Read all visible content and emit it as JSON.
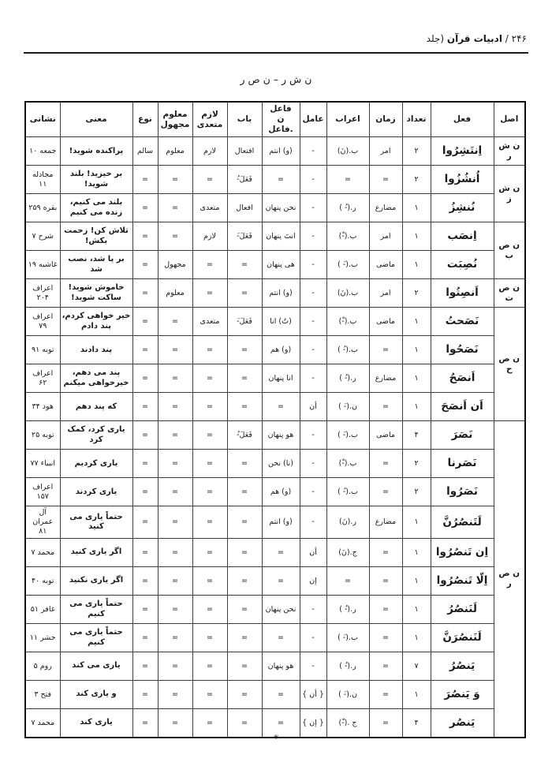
{
  "page": {
    "header_number": "۲۴۶ /",
    "header_title": "ادبیات قرآن",
    "header_suffix": "(جلد",
    "section_title": "ن ش ر – ن ص ر",
    "footer_mark": "*"
  },
  "table": {
    "headers": {
      "asl": "اصل",
      "fel": "فعل",
      "tedad": "تعداد",
      "zaman": "زمان",
      "erab": "اعراب",
      "amel": "عامل",
      "fael": "فاعل\nن .فاعل",
      "bab": "باب",
      "lazem": "لازم\nمتعدی",
      "maloom": "معلوم\nمجهول",
      "no": "نوع",
      "mani": "معنی",
      "neshani": "نشانی"
    },
    "rows": [
      {
        "asl": "ن ش ر",
        "asl_span": 1,
        "fel": "اِنتَشِرُوا",
        "tedad": "۲",
        "zaman": "امر",
        "erab": "ب.(نَ)",
        "amel": "-",
        "fael": "(و) انتم",
        "bab": "افتعال",
        "lazem": "لازم",
        "maloom": "معلوم",
        "no": "سالم",
        "mani": "پراکنده شوید!",
        "neshani": "جمعه ۱۰"
      },
      {
        "asl": "ن ش ز",
        "asl_span": 2,
        "fel": "اُنشُزُوا",
        "tedad": "۲",
        "zaman": "=",
        "erab": "=",
        "amel": "-",
        "fael": "=",
        "bab": "فَعَلَ-ُ",
        "lazem": "=",
        "maloom": "=",
        "no": "=",
        "mani": "بر خیزید! بلند شوید!",
        "neshani": "مجادله ۱۱"
      },
      {
        "fel": "نُنشِزُ",
        "tedad": "۱",
        "zaman": "مضارع",
        "erab": "ر.(-ُ )",
        "amel": "-",
        "fael": "نحن پنهان",
        "bab": "افعال",
        "lazem": "متعدی",
        "maloom": "=",
        "no": "=",
        "mani": "بلند می کنیم، زنده می کنیم",
        "neshani": "بقره ۲۵۹"
      },
      {
        "asl": "ن ص ب",
        "asl_span": 2,
        "fel": "اِنصَب",
        "tedad": "۱",
        "zaman": "امر",
        "erab": "ب.(-ْ)",
        "amel": "-",
        "fael": "انتَ پنهان",
        "bab": "فَعَلَ-َ",
        "lazem": "لازم",
        "maloom": "=",
        "no": "=",
        "mani": "تلاش کن! زحمت بکش!",
        "neshani": "شرح ۷"
      },
      {
        "fel": "نُصِبَت",
        "tedad": "۱",
        "zaman": "ماضی",
        "erab": "ب.(-َ )",
        "amel": "-",
        "fael": "هی پنهان",
        "bab": "=",
        "lazem": "=",
        "maloom": "مجهول",
        "no": "=",
        "mani": "بر پا شد، نصب شد",
        "neshani": "غاشیه ۱۹"
      },
      {
        "asl": "ن ص ت",
        "asl_span": 1,
        "fel": "اَنصِتُوا",
        "tedad": "۲",
        "zaman": "امر",
        "erab": "ب.(نَ)",
        "amel": "-",
        "fael": "(و) انتم",
        "bab": "=",
        "lazem": "=",
        "maloom": "معلوم",
        "no": "=",
        "mani": "خاموش شوید! ساکت شوید!",
        "neshani": "اعراف ۲۰۴"
      },
      {
        "asl": "ن ص ح",
        "asl_span": 4,
        "fel": "نَصَحتُ",
        "tedad": "۱",
        "zaman": "ماضی",
        "erab": "ب.(-ْ)",
        "amel": "-",
        "fael": "(تُ) انا",
        "bab": "فَعَلَ-َ",
        "lazem": "متعدی",
        "maloom": "=",
        "no": "=",
        "mani": "خیر خواهی کردم، پند دادم",
        "neshani": "اعراف ۷۹"
      },
      {
        "fel": "نَصَحُوا",
        "tedad": "۱",
        "zaman": "=",
        "erab": "ب.(-ُ )",
        "amel": "-",
        "fael": "(و) هم",
        "bab": "=",
        "lazem": "=",
        "maloom": "=",
        "no": "=",
        "mani": "پند دادند",
        "neshani": "توبه ۹۱"
      },
      {
        "fel": "اَنصَحُ",
        "tedad": "۱",
        "zaman": "مضارع",
        "erab": "ر.(-ُ )",
        "amel": "-",
        "fael": "انا پنهان",
        "bab": "=",
        "lazem": "=",
        "maloom": "=",
        "no": "=",
        "mani": "پند می دهم، خیرخواهی میکنم",
        "neshani": "اعراف ۶۲"
      },
      {
        "fel": "اَن اَنصَحَ",
        "tedad": "۱",
        "zaman": "=",
        "erab": "ن.(-َ )",
        "amel": "أن",
        "fael": "=",
        "bab": "=",
        "lazem": "=",
        "maloom": "=",
        "no": "=",
        "mani": "که پند دهم",
        "neshani": "هود ۳۴"
      },
      {
        "asl": "ن ص ر",
        "asl_span": 11,
        "fel": "نَصَرَ",
        "tedad": "۴",
        "zaman": "ماضی",
        "erab": "ب.(-َ )",
        "amel": "-",
        "fael": "هو پنهان",
        "bab": "فَعَلَ-ُ",
        "lazem": "=",
        "maloom": "=",
        "no": "=",
        "mani": "یاری کرد، کمک کرد",
        "neshani": "توبه ۲۵"
      },
      {
        "fel": "نَصَرنا",
        "tedad": "۲",
        "zaman": "=",
        "erab": "ب.(-ْ)",
        "amel": "-",
        "fael": "(نا) نحن",
        "bab": "=",
        "lazem": "=",
        "maloom": "=",
        "no": "=",
        "mani": "یاری کردیم",
        "neshani": "انبیاء ۷۷"
      },
      {
        "fel": "نَصَرُوا",
        "tedad": "۲",
        "zaman": "=",
        "erab": "ب.(-ُ )",
        "amel": "-",
        "fael": "(و) هم",
        "bab": "=",
        "lazem": "=",
        "maloom": "=",
        "no": "=",
        "mani": "یاری کردند",
        "neshani": "اعراف ۱۵۷"
      },
      {
        "fel": "لَتَنصُرُنَّ",
        "tedad": "۱",
        "zaman": "مضارع",
        "erab": "ر.(نَ)",
        "amel": "-",
        "fael": "(و) انتم",
        "bab": "=",
        "lazem": "=",
        "maloom": "=",
        "no": "=",
        "mani": "حتماً یاری می کنید",
        "neshani": "آل عمران ۸۱"
      },
      {
        "fel": "اِن تَنصُرُوا",
        "tedad": "۱",
        "zaman": "=",
        "erab": "ج.(نَ)",
        "amel": "أن",
        "fael": "=",
        "bab": "=",
        "lazem": "=",
        "maloom": "=",
        "no": "=",
        "mani": "اگر یاری کنید",
        "neshani": "محمد ۷"
      },
      {
        "fel": "اِلّا تَنصُرُوا",
        "tedad": "۱",
        "zaman": "=",
        "erab": "=",
        "amel": "إن",
        "fael": "=",
        "bab": "=",
        "lazem": "=",
        "maloom": "=",
        "no": "=",
        "mani": "اگر یاری نکنید",
        "neshani": "توبه ۴۰"
      },
      {
        "fel": "لَنَنصُرُ",
        "tedad": "۱",
        "zaman": "=",
        "erab": "ر.(-ُ )",
        "amel": "-",
        "fael": "نحن پنهان",
        "bab": "=",
        "lazem": "=",
        "maloom": "=",
        "no": "=",
        "mani": "حتماً یاری می کنیم",
        "neshani": "غافر ۵۱"
      },
      {
        "fel": "لَنَنصُرَنَّ",
        "tedad": "۱",
        "zaman": "=",
        "erab": "ب.(-َ )",
        "amel": "-",
        "fael": "=",
        "bab": "=",
        "lazem": "=",
        "maloom": "=",
        "no": "=",
        "mani": "حتماً یاری می کنیم",
        "neshani": "حشر ۱۱"
      },
      {
        "fel": "یَنصُرُ",
        "tedad": "۷",
        "zaman": "=",
        "erab": "ر.(-ُ )",
        "amel": "-",
        "fael": "هو پنهان",
        "bab": "=",
        "lazem": "=",
        "maloom": "=",
        "no": "=",
        "mani": "یاری می کند",
        "neshani": "روم ۵"
      },
      {
        "fel": "وَ یَنصُرَ",
        "tedad": "۱",
        "zaman": "=",
        "erab": "ن.(-َ )",
        "amel": "{ أن }",
        "fael": "=",
        "bab": "=",
        "lazem": "=",
        "maloom": "=",
        "no": "=",
        "mani": "و یاری کند",
        "neshani": "فتح ۳"
      },
      {
        "fel": "یَنصُر",
        "tedad": "۴",
        "zaman": "=",
        "erab": "ج .(-ْ)",
        "amel": "{ إن }",
        "fael": "=",
        "bab": "=",
        "lazem": "=",
        "maloom": "=",
        "no": "=",
        "mani": "یاری کند",
        "neshani": "محمد ۷"
      }
    ]
  }
}
